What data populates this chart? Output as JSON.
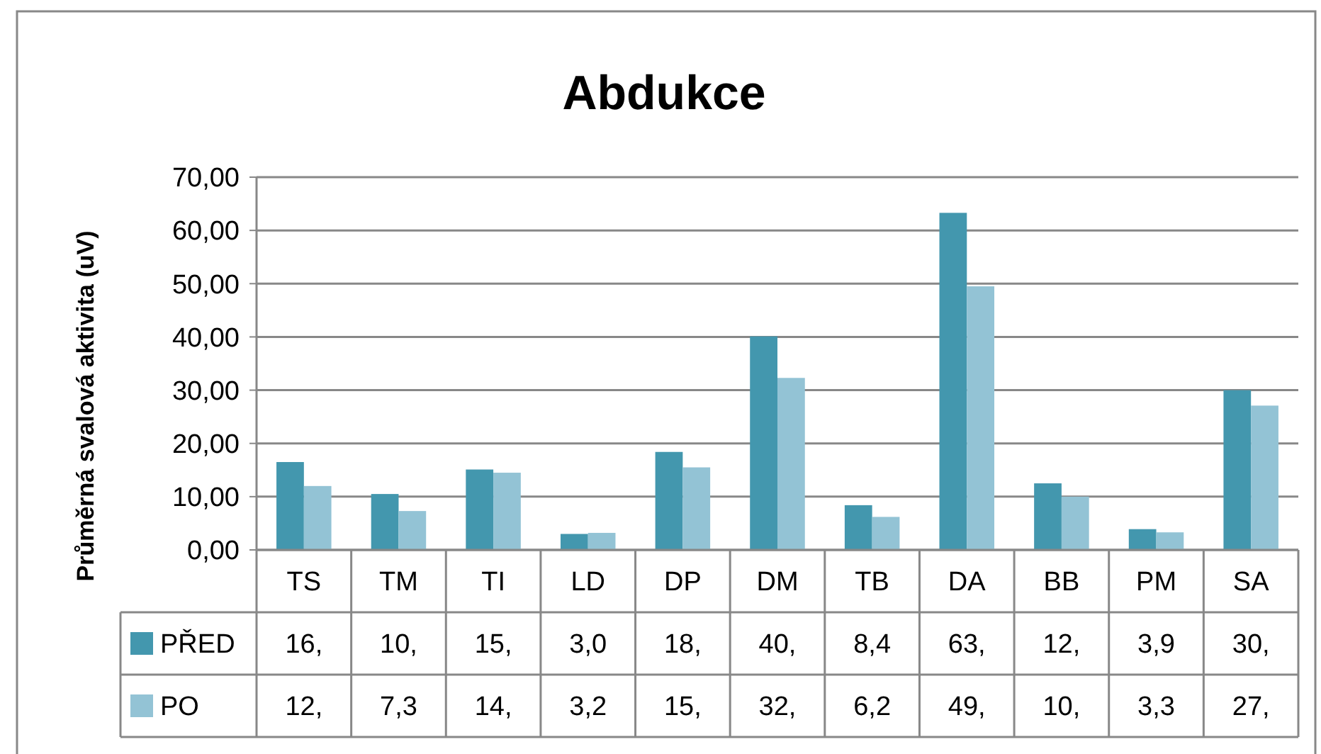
{
  "chart_data": {
    "type": "bar",
    "title": "Abdukce",
    "ylabel": "Průměrná svalová aktivita (uV)",
    "categories": [
      "TS",
      "TM",
      "TI",
      "LD",
      "DP",
      "DM",
      "TB",
      "DA",
      "BB",
      "PM",
      "SA"
    ],
    "series": [
      {
        "name": "PŘED",
        "color": "#4397ae",
        "values": [
          16.5,
          10.5,
          15.1,
          3.0,
          18.4,
          40.1,
          8.4,
          63.3,
          12.5,
          3.9,
          30.0
        ],
        "value_labels": [
          "16,",
          "10,",
          "15,",
          "3,0",
          "18,",
          "40,",
          "8,4",
          "63,",
          "12,",
          "3,9",
          "30,"
        ]
      },
      {
        "name": "PO",
        "color": "#93c3d5",
        "values": [
          12.0,
          7.3,
          14.5,
          3.2,
          15.5,
          32.3,
          6.2,
          49.5,
          10.0,
          3.3,
          27.1
        ],
        "value_labels": [
          "12,",
          "7,3",
          "14,",
          "3,2",
          "15,",
          "32,",
          "6,2",
          "49,",
          "10,",
          "3,3",
          "27,"
        ]
      }
    ],
    "ylim": [
      0,
      70
    ],
    "yticks": [
      {
        "value": 0,
        "label": "0,00"
      },
      {
        "value": 10,
        "label": "10,00"
      },
      {
        "value": 20,
        "label": "20,00"
      },
      {
        "value": 30,
        "label": "30,00"
      },
      {
        "value": 40,
        "label": "40,00"
      },
      {
        "value": 50,
        "label": "50,00"
      },
      {
        "value": 60,
        "label": "60,00"
      },
      {
        "value": 70,
        "label": "70,00"
      }
    ],
    "grid": "y",
    "legend": "bottom"
  }
}
